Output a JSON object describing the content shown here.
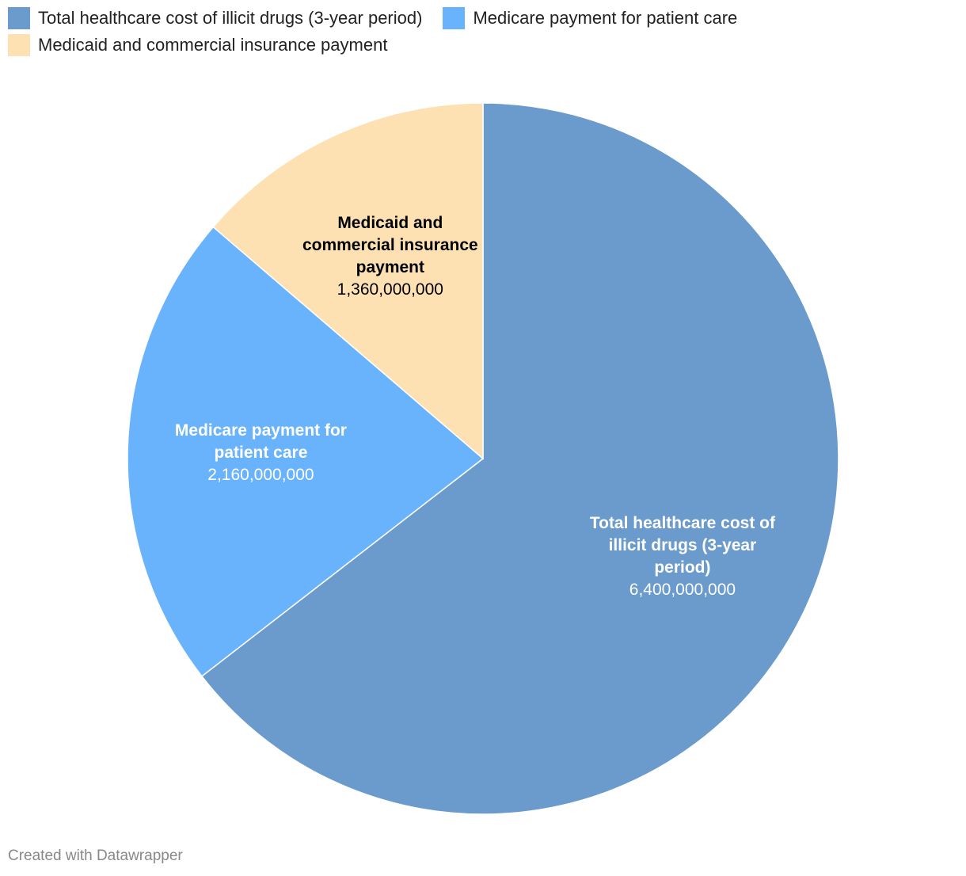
{
  "chart_data": {
    "type": "pie",
    "categories": [
      "Total healthcare cost of illicit drugs (3-year period)",
      "Medicare payment for patient care",
      "Medicaid and commercial insurance payment"
    ],
    "values": [
      6400000000,
      2160000000,
      1360000000
    ],
    "value_labels": [
      "6,400,000,000",
      "2,160,000,000",
      "1,360,000,000"
    ],
    "colors": [
      "#6a9bcc",
      "#69b3fd",
      "#fde1b3"
    ],
    "legend": "top-left",
    "footer": "Created with Datawrapper"
  }
}
